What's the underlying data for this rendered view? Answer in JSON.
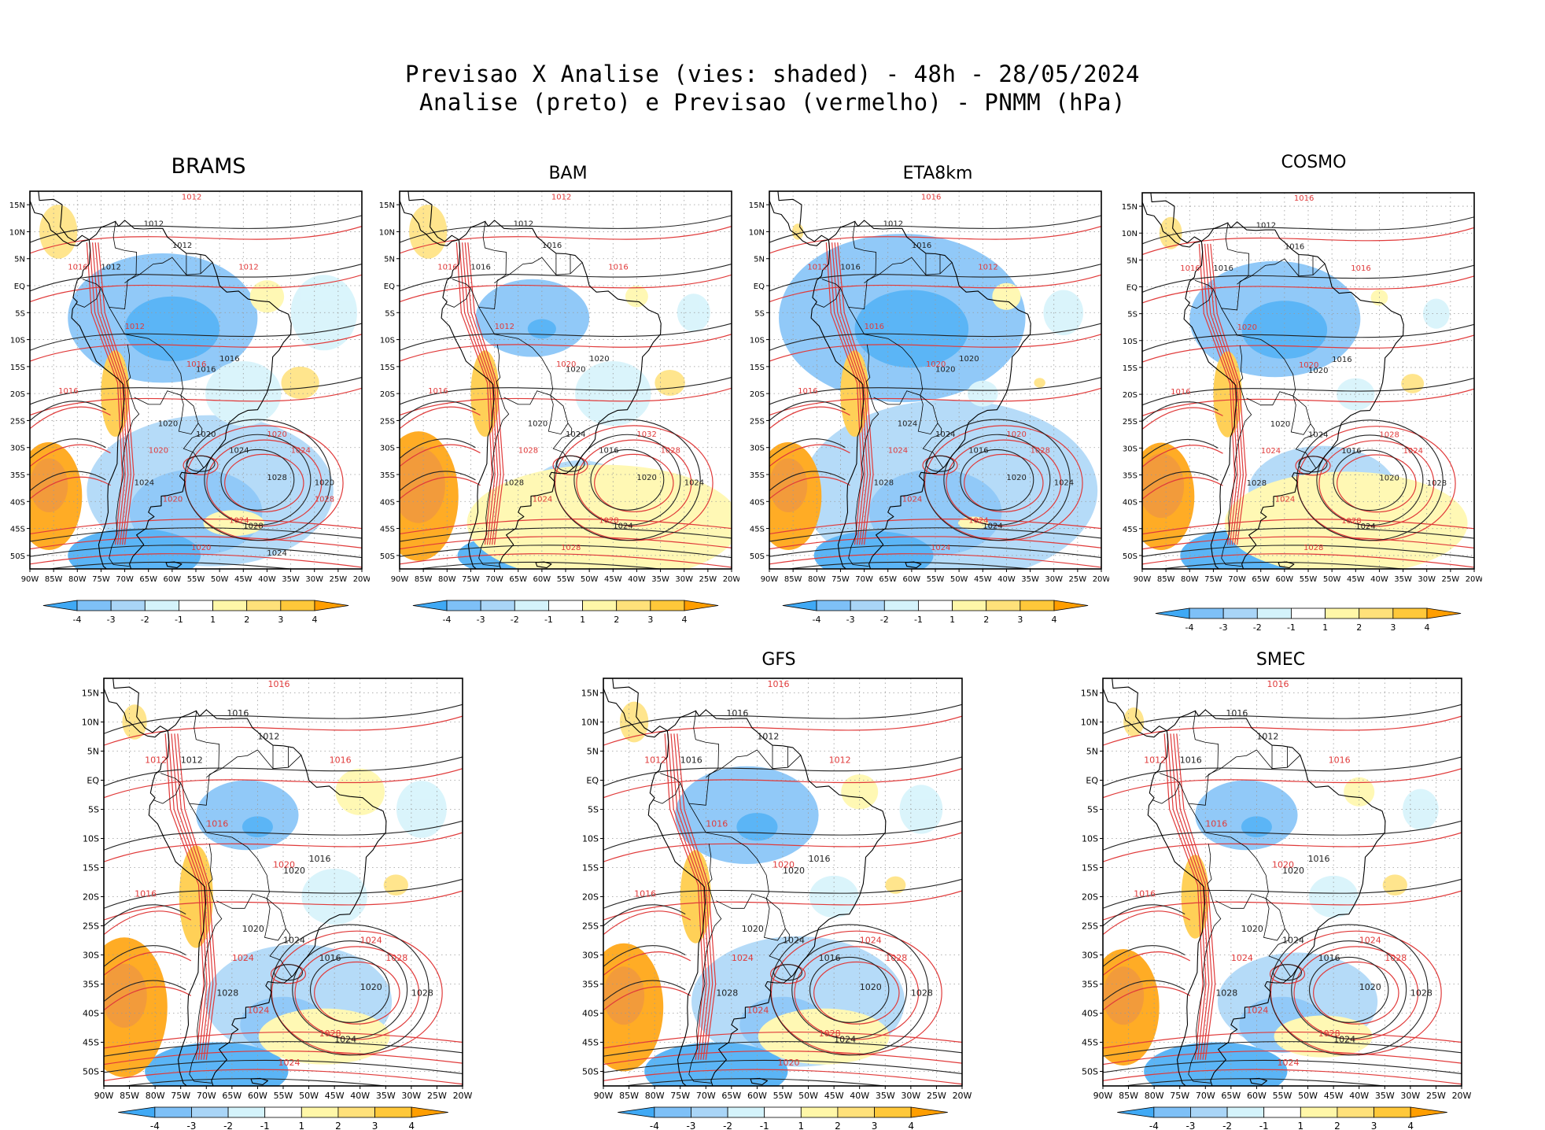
{
  "figure": {
    "title_line1": "Previsao X Analise (vies: shaded) - 48h - 28/05/2024",
    "title_line2": "Analise (preto) e Previsao (vermelho) - PNMM (hPa)"
  },
  "map": {
    "lat_labels": [
      "15N",
      "10N",
      "5N",
      "EQ",
      "5S",
      "10S",
      "15S",
      "20S",
      "25S",
      "30S",
      "35S",
      "40S",
      "45S",
      "50S"
    ],
    "lon_labels": [
      "90W",
      "85W",
      "80W",
      "75W",
      "70W",
      "65W",
      "60W",
      "55W",
      "50W",
      "45W",
      "40W",
      "35W",
      "30W",
      "25W",
      "20W"
    ],
    "lat_values": [
      15,
      10,
      5,
      0,
      -5,
      -10,
      -15,
      -20,
      -25,
      -30,
      -35,
      -40,
      -45,
      -50
    ],
    "lon_values": [
      -90,
      -85,
      -80,
      -75,
      -70,
      -65,
      -60,
      -55,
      -50,
      -45,
      -40,
      -35,
      -30,
      -25,
      -20
    ],
    "lat_range": [
      -52.5,
      17.5
    ],
    "lon_range": [
      -90,
      -20
    ]
  },
  "colorbar": {
    "labels": [
      "-4",
      "-3",
      "-2",
      "-1",
      "1",
      "2",
      "3",
      "4"
    ],
    "colors": [
      "#3fa9f5",
      "#7ec0f7",
      "#a9d5f7",
      "#d4f3fb",
      "#ffffff",
      "#fff7a8",
      "#ffe17a",
      "#ffc83a",
      "#ff9e00"
    ]
  },
  "colors": {
    "analysis_contour": "#222222",
    "forecast_contour": "#e03a3a",
    "coastline": "#000000"
  },
  "panels": [
    {
      "name": "BRAMS",
      "labels_black": [
        "1012",
        "1012",
        "1012",
        "1016",
        "1016",
        "1020",
        "1020",
        "1024",
        "1028",
        "1024",
        "1028",
        "1020",
        "1024"
      ],
      "labels_red": [
        "1012",
        "1016",
        "1012",
        "1012",
        "1016",
        "1016",
        "1020",
        "1020",
        "1024",
        "1020",
        "1024",
        "1020",
        "1028"
      ]
    },
    {
      "name": "BAM",
      "labels_black": [
        "1012",
        "1016",
        "1016",
        "1020",
        "1020",
        "1020",
        "1024",
        "1028",
        "1024",
        "1016",
        "1020",
        "1024"
      ],
      "labels_red": [
        "1012",
        "1016",
        "1016",
        "1012",
        "1016",
        "1020",
        "1028",
        "1032",
        "1028",
        "1024",
        "1028",
        "1028"
      ]
    },
    {
      "name": "ETA8km",
      "labels_black": [
        "1012",
        "1016",
        "1016",
        "1020",
        "1020",
        "1024",
        "1024",
        "1028",
        "1024",
        "1016",
        "1020",
        "1024"
      ],
      "labels_red": [
        "1016",
        "1012",
        "1012",
        "1016",
        "1016",
        "1020",
        "1024",
        "1020",
        "1024",
        "1024",
        "1028",
        "1024"
      ]
    },
    {
      "name": "COSMO",
      "labels_black": [
        "1012",
        "1016",
        "1016",
        "1016",
        "1020",
        "1020",
        "1024",
        "1028",
        "1024",
        "1016",
        "1020",
        "1028"
      ],
      "labels_red": [
        "1016",
        "1016",
        "1016",
        "1020",
        "1016",
        "1020",
        "1024",
        "1028",
        "1028",
        "1024",
        "1024",
        "1028"
      ]
    },
    {
      "name": "",
      "labels_black": [
        "1016",
        "1012",
        "1012",
        "1016",
        "1020",
        "1020",
        "1024",
        "1028",
        "1024",
        "1016",
        "1020",
        "1028"
      ],
      "labels_red": [
        "1016",
        "1012",
        "1016",
        "1016",
        "1016",
        "1020",
        "1024",
        "1024",
        "1028",
        "1024",
        "1028",
        "1024"
      ]
    },
    {
      "name": "GFS",
      "labels_black": [
        "1016",
        "1012",
        "1016",
        "1016",
        "1020",
        "1020",
        "1024",
        "1028",
        "1024",
        "1016",
        "1020",
        "1028"
      ],
      "labels_red": [
        "1016",
        "1012",
        "1012",
        "1016",
        "1016",
        "1020",
        "1024",
        "1024",
        "1028",
        "1024",
        "1028",
        "1020"
      ]
    },
    {
      "name": "SMEC",
      "labels_black": [
        "1016",
        "1012",
        "1016",
        "1016",
        "1020",
        "1020",
        "1024",
        "1028",
        "1024",
        "1016",
        "1020",
        "1028"
      ],
      "labels_red": [
        "1016",
        "1012",
        "1016",
        "1016",
        "1016",
        "1020",
        "1024",
        "1024",
        "1028",
        "1024",
        "1028",
        "1024"
      ]
    }
  ]
}
